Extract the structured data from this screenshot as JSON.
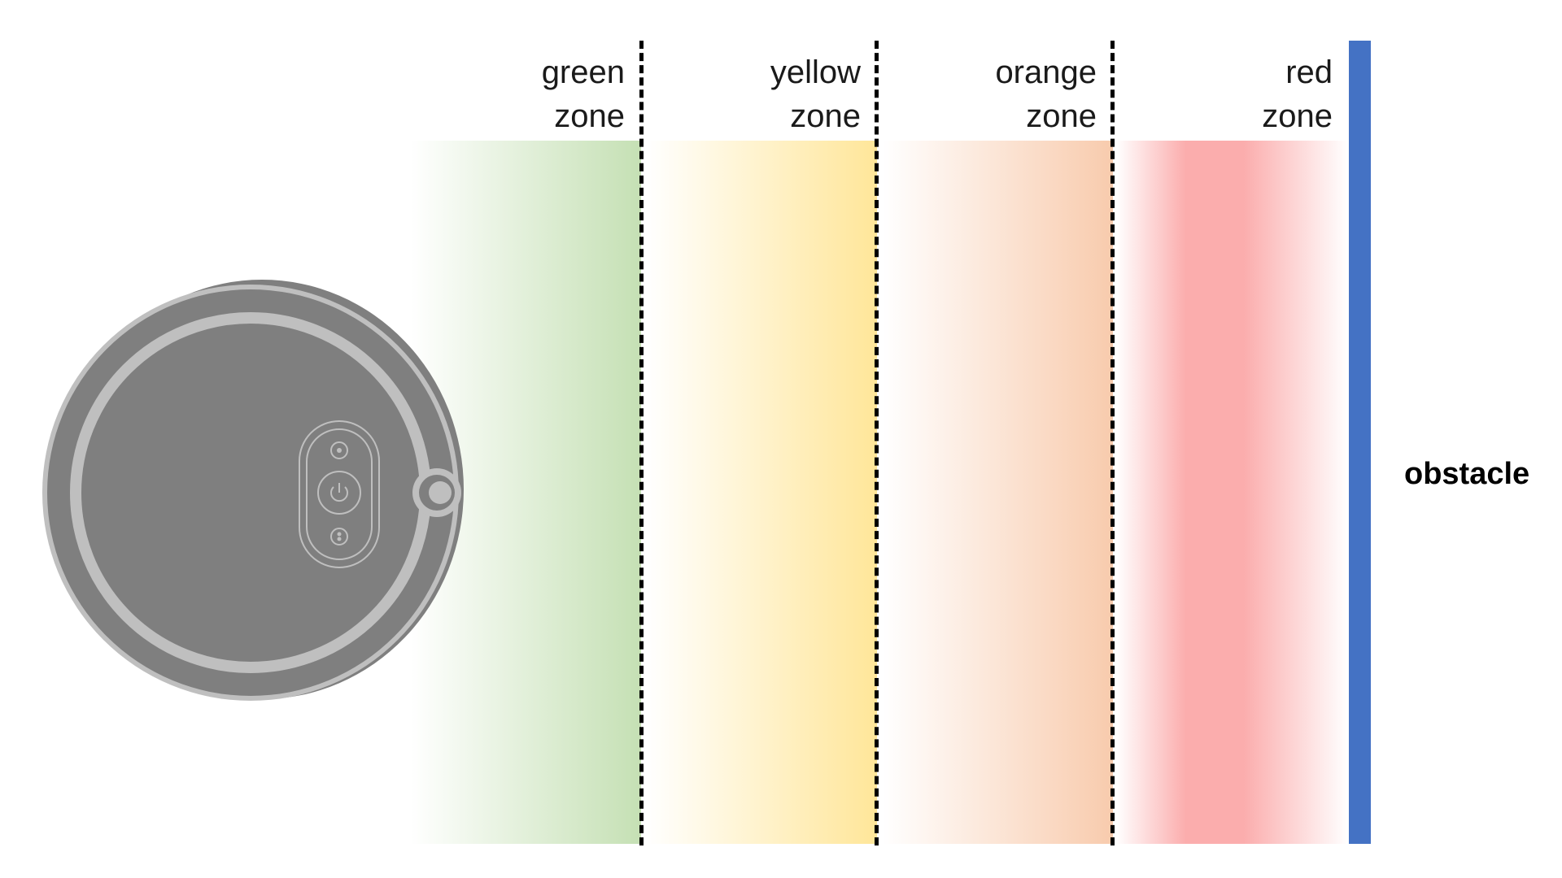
{
  "zones": [
    {
      "line1": "green",
      "line2": "zone",
      "color": "#c5e0b4"
    },
    {
      "line1": "yellow",
      "line2": "zone",
      "color": "#ffe699"
    },
    {
      "line1": "orange",
      "line2": "zone",
      "color": "#f8cbad"
    },
    {
      "line1": "red",
      "line2": "zone",
      "color": "#fbadad"
    }
  ],
  "obstacle": {
    "label": "obstacle",
    "color": "#4472c4"
  },
  "robot": {
    "icon": "robot-vacuum-icon",
    "body_color": "#7f7f7f",
    "ring_color": "#bfbfbf"
  }
}
